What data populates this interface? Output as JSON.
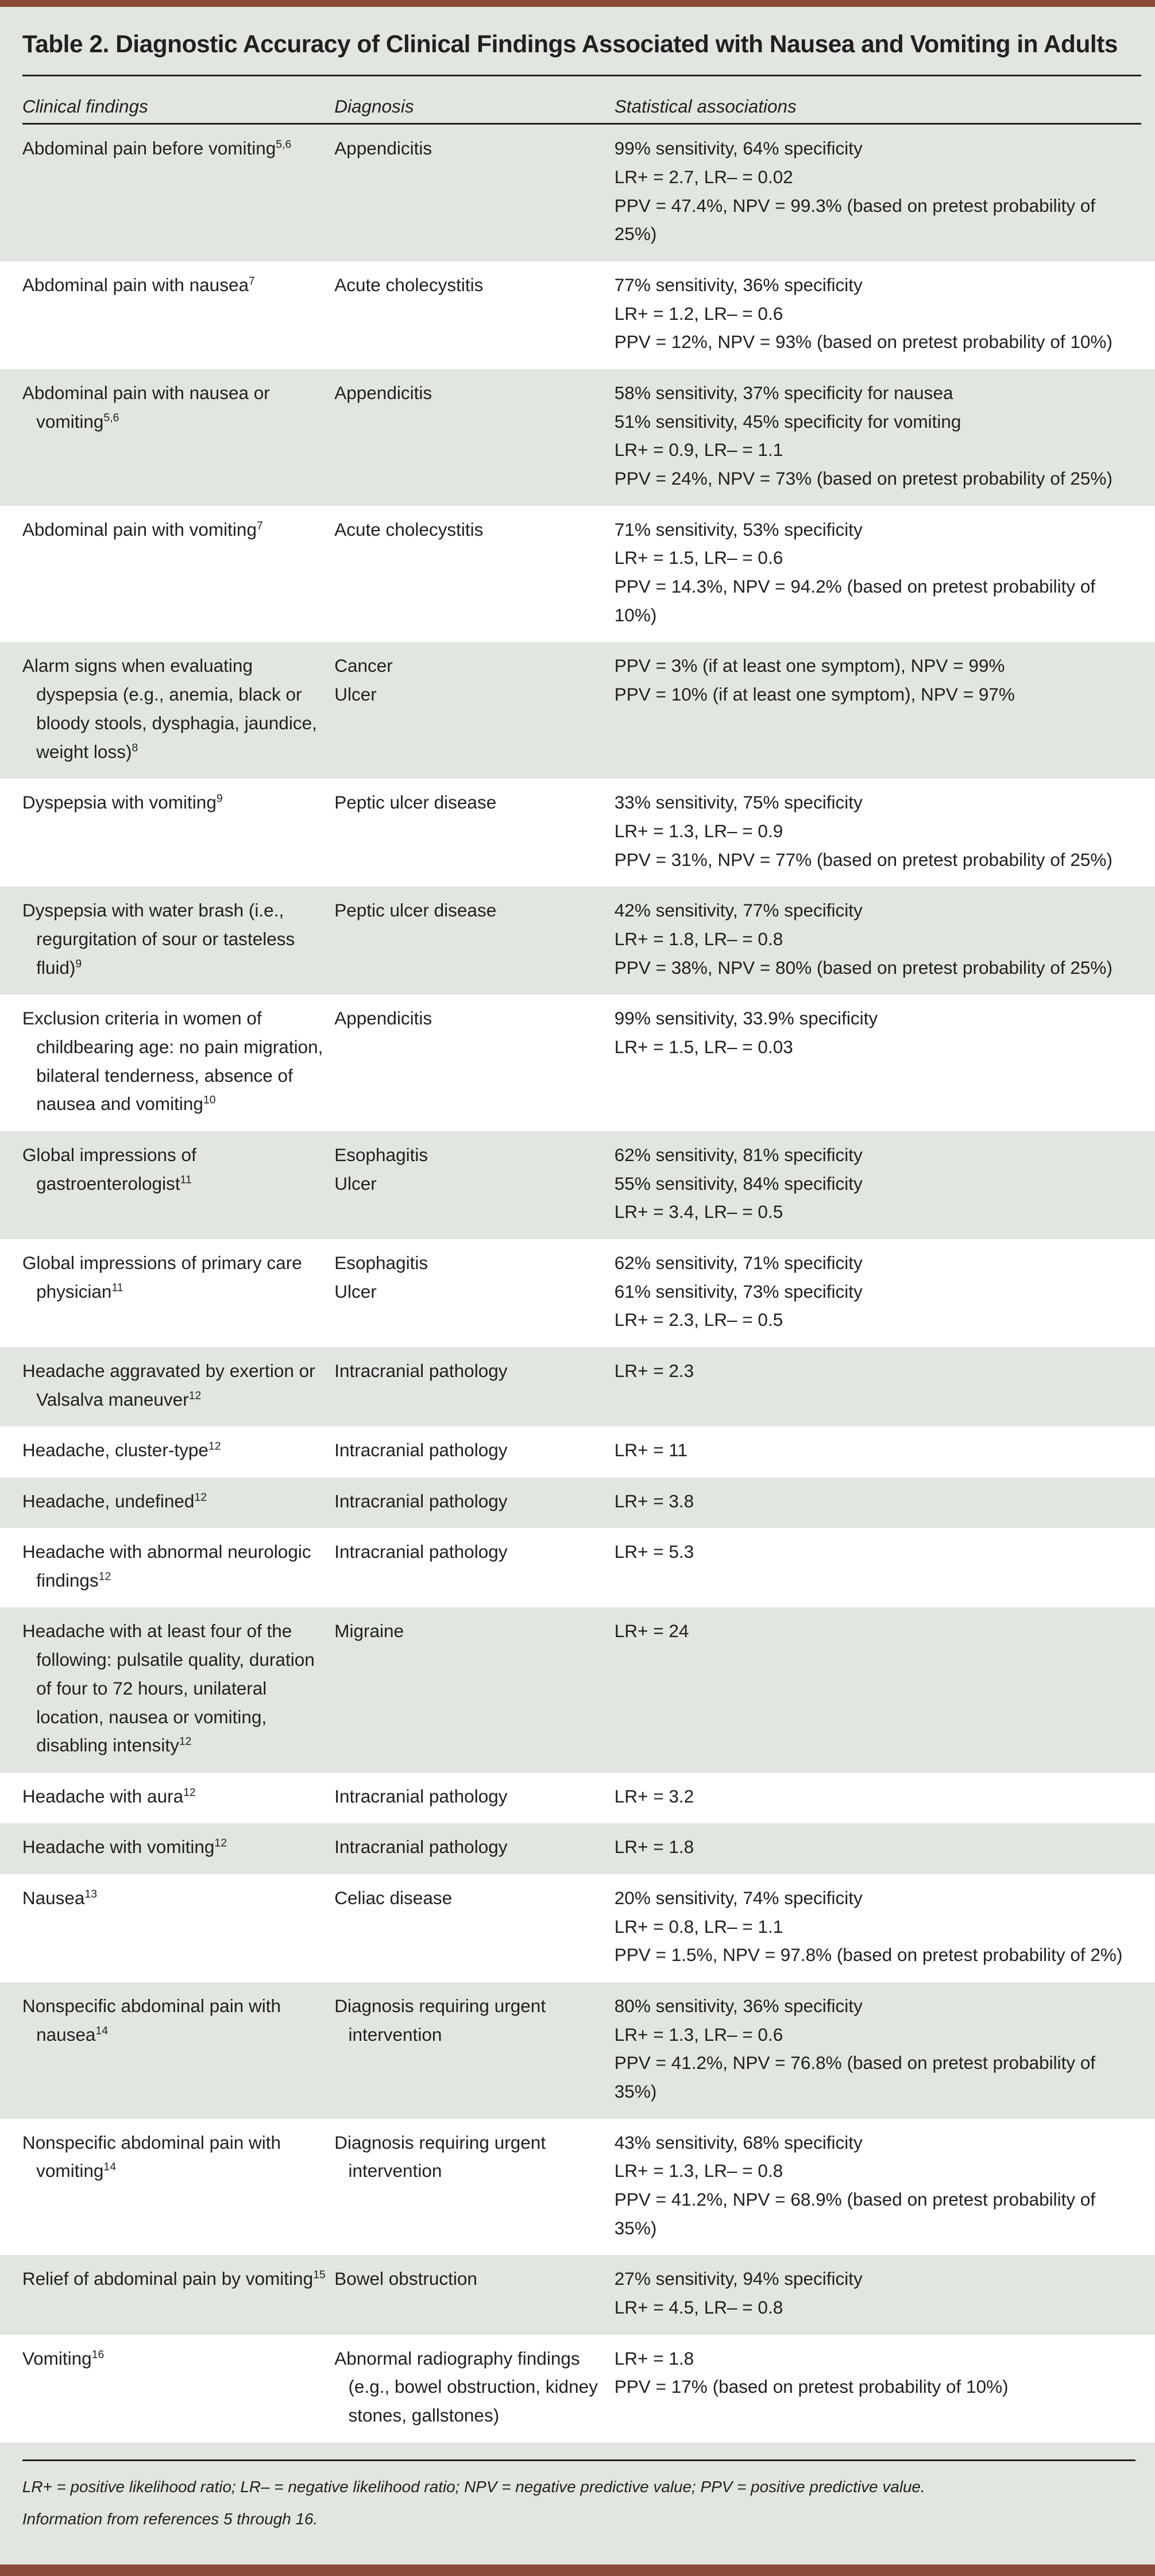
{
  "title": "Table 2. Diagnostic Accuracy of Clinical Findings Associated with Nausea and Vomiting in Adults",
  "colors": {
    "accent_bar": "#8a4b38",
    "row_shade": "#e1e7e0"
  },
  "headers": [
    "Clinical findings",
    "Diagnosis",
    "Statistical associations"
  ],
  "rows": [
    {
      "finding": "Abdominal pain before vomiting",
      "ref": "5,6",
      "diagnosis": [
        "Appendicitis"
      ],
      "stats": [
        "99% sensitivity, 64% specificity",
        "LR+ = 2.7, LR– = 0.02",
        "PPV = 47.4%, NPV = 99.3% (based on pretest probability of 25%)"
      ]
    },
    {
      "finding": "Abdominal pain with nausea",
      "ref": "7",
      "diagnosis": [
        "Acute cholecystitis"
      ],
      "stats": [
        "77% sensitivity, 36% specificity",
        "LR+ = 1.2, LR– = 0.6",
        "PPV = 12%, NPV = 93% (based on pretest probability of 10%)"
      ]
    },
    {
      "finding": "Abdominal pain with nausea or vomiting",
      "ref": "5,6",
      "diagnosis": [
        "Appendicitis"
      ],
      "stats": [
        "58% sensitivity, 37% specificity for nausea",
        "51% sensitivity, 45% specificity for vomiting",
        "LR+ = 0.9, LR– = 1.1",
        "PPV = 24%, NPV = 73% (based on pretest probability of 25%)"
      ]
    },
    {
      "finding": "Abdominal pain with vomiting",
      "ref": "7",
      "diagnosis": [
        "Acute cholecystitis"
      ],
      "stats": [
        "71% sensitivity, 53% specificity",
        "LR+ = 1.5, LR– = 0.6",
        "PPV = 14.3%, NPV = 94.2% (based on pretest probability of 10%)"
      ]
    },
    {
      "finding": "Alarm signs when evaluating dyspepsia (e.g., anemia, black or bloody stools, dysphagia, jaundice, weight loss)",
      "ref": "8",
      "diagnosis": [
        "Cancer",
        "Ulcer"
      ],
      "stats": [
        "PPV = 3% (if at least one symptom), NPV = 99%",
        "PPV = 10% (if at least one symptom), NPV = 97%"
      ]
    },
    {
      "finding": "Dyspepsia with vomiting",
      "ref": "9",
      "diagnosis": [
        "Peptic ulcer disease"
      ],
      "stats": [
        "33% sensitivity, 75% specificity",
        "LR+ = 1.3, LR– = 0.9",
        "PPV = 31%, NPV = 77% (based on pretest probability of 25%)"
      ]
    },
    {
      "finding": "Dyspepsia with water brash (i.e., regurgitation of sour or tasteless fluid)",
      "ref": "9",
      "diagnosis": [
        "Peptic ulcer disease"
      ],
      "stats": [
        "42% sensitivity, 77% specificity",
        "LR+ = 1.8, LR– = 0.8",
        "PPV = 38%, NPV = 80% (based on pretest probability of 25%)"
      ]
    },
    {
      "finding": "Exclusion criteria in women of childbearing age: no pain migration, bilateral tenderness, absence of nausea and vomiting",
      "ref": "10",
      "diagnosis": [
        "Appendicitis"
      ],
      "stats": [
        "99% sensitivity, 33.9% specificity",
        "LR+ = 1.5, LR– = 0.03"
      ]
    },
    {
      "finding": "Global impressions of gastroenterologist",
      "ref": "11",
      "diagnosis": [
        "Esophagitis",
        "Ulcer"
      ],
      "stats": [
        "62% sensitivity, 81% specificity",
        "55% sensitivity, 84% specificity",
        "LR+ = 3.4, LR– = 0.5"
      ]
    },
    {
      "finding": "Global impressions of primary care physician",
      "ref": "11",
      "diagnosis": [
        "Esophagitis",
        "Ulcer"
      ],
      "stats": [
        "62% sensitivity, 71% specificity",
        "61% sensitivity, 73% specificity",
        "LR+ = 2.3, LR– = 0.5"
      ]
    },
    {
      "finding": "Headache aggravated by exertion or Valsalva maneuver",
      "ref": "12",
      "diagnosis": [
        "Intracranial pathology"
      ],
      "stats": [
        "LR+ = 2.3"
      ]
    },
    {
      "finding": "Headache, cluster-type",
      "ref": "12",
      "diagnosis": [
        "Intracranial pathology"
      ],
      "stats": [
        "LR+ = 11"
      ]
    },
    {
      "finding": "Headache, undefined",
      "ref": "12",
      "diagnosis": [
        "Intracranial pathology"
      ],
      "stats": [
        "LR+ = 3.8"
      ]
    },
    {
      "finding": "Headache with abnormal neurologic findings",
      "ref": "12",
      "diagnosis": [
        "Intracranial pathology"
      ],
      "stats": [
        "LR+ = 5.3"
      ]
    },
    {
      "finding": "Headache with at least four of the following: pulsatile quality, duration of four to 72 hours, unilateral location, nausea or vomiting, disabling intensity",
      "ref": "12",
      "diagnosis": [
        "Migraine"
      ],
      "stats": [
        "LR+ = 24"
      ]
    },
    {
      "finding": "Headache with aura",
      "ref": "12",
      "diagnosis": [
        "Intracranial pathology"
      ],
      "stats": [
        "LR+ = 3.2"
      ]
    },
    {
      "finding": "Headache with vomiting",
      "ref": "12",
      "diagnosis": [
        "Intracranial pathology"
      ],
      "stats": [
        "LR+ = 1.8"
      ]
    },
    {
      "finding": "Nausea",
      "ref": "13",
      "diagnosis": [
        "Celiac disease"
      ],
      "stats": [
        "20% sensitivity, 74% specificity",
        "LR+ = 0.8, LR– = 1.1",
        "PPV = 1.5%, NPV = 97.8% (based on pretest probability of 2%)"
      ]
    },
    {
      "finding": "Nonspecific abdominal pain with nausea",
      "ref": "14",
      "diagnosis": [
        "Diagnosis requiring urgent intervention"
      ],
      "stats": [
        "80% sensitivity, 36% specificity",
        "LR+ = 1.3, LR– = 0.6",
        "PPV = 41.2%, NPV = 76.8% (based on pretest probability of 35%)"
      ]
    },
    {
      "finding": "Nonspecific abdominal pain with vomiting",
      "ref": "14",
      "diagnosis": [
        "Diagnosis requiring urgent intervention"
      ],
      "stats": [
        "43% sensitivity, 68% specificity",
        "LR+ = 1.3, LR– = 0.8",
        "PPV = 41.2%, NPV = 68.9% (based on pretest probability of 35%)"
      ]
    },
    {
      "finding": "Relief of abdominal pain by vomiting",
      "ref": "15",
      "diagnosis": [
        "Bowel obstruction"
      ],
      "stats": [
        "27% sensitivity, 94% specificity",
        "LR+ = 4.5, LR– = 0.8"
      ]
    },
    {
      "finding": "Vomiting",
      "ref": "16",
      "diagnosis": [
        "Abnormal radiography findings (e.g., bowel obstruction, kidney stones, gallstones)"
      ],
      "stats": [
        "LR+ = 1.8",
        "PPV = 17% (based on pretest probability of 10%)"
      ]
    }
  ],
  "footnotes": [
    "LR+ = positive likelihood ratio; LR– = negative likelihood ratio; NPV = negative predictive value; PPV = positive predictive value.",
    "Information from references 5 through 16."
  ]
}
